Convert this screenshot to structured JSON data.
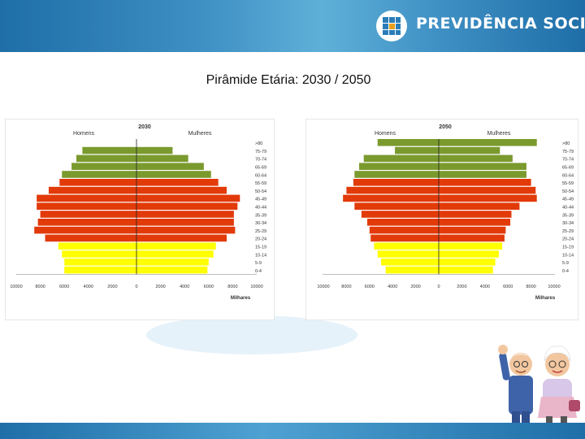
{
  "brand": {
    "name": "PREVIDÊNCIA SOCIAL"
  },
  "page": {
    "title": "Pirâmide Etária: 2030 / 2050"
  },
  "colors": {
    "green": "#7a9a2e",
    "red": "#e23a09",
    "yellow": "#ffff00"
  },
  "chart_data": [
    {
      "type": "bar",
      "title": "2030",
      "left_label": "Homens",
      "right_label": "Mulheres",
      "xlabel": "Milhares",
      "xlim": [
        -10000,
        10000
      ],
      "x_ticks": [
        "10000",
        "8000",
        "6000",
        "4000",
        "2000",
        "0",
        "2000",
        "4000",
        "6000",
        "8000",
        "10000"
      ],
      "categories": [
        ">80",
        "75-79",
        "70-74",
        "65-69",
        "60-64",
        "55-59",
        "50-54",
        "45-49",
        "40-44",
        "35-39",
        "30-34",
        "25-29",
        "20-24",
        "15-19",
        "10-14",
        "5-9",
        "0-4"
      ],
      "category_colors": [
        "green",
        "green",
        "green",
        "green",
        "green",
        "red",
        "red",
        "red",
        "red",
        "red",
        "red",
        "red",
        "red",
        "yellow",
        "yellow",
        "yellow",
        "yellow"
      ],
      "series": [
        {
          "name": "Homens",
          "values": [
            0,
            4500,
            5000,
            5400,
            6200,
            6400,
            7300,
            8300,
            8300,
            8000,
            8200,
            8500,
            7600,
            6500,
            6200,
            6000,
            6000
          ]
        },
        {
          "name": "Mulheres",
          "values": [
            0,
            3000,
            4300,
            5600,
            6200,
            6800,
            7500,
            8600,
            8400,
            8100,
            8100,
            8200,
            7500,
            6600,
            6400,
            6000,
            5900
          ]
        }
      ]
    },
    {
      "type": "bar",
      "title": "2050",
      "left_label": "Homens",
      "right_label": "Mulheres",
      "xlabel": "Milhares",
      "xlim": [
        -10000,
        10000
      ],
      "x_ticks": [
        "10000",
        "8000",
        "6000",
        "4000",
        "2000",
        "0",
        "2000",
        "4000",
        "6000",
        "8000",
        "10000"
      ],
      "categories": [
        ">80",
        "75-79",
        "70-74",
        "65-69",
        "60-64",
        "55-59",
        "50-54",
        "45-49",
        "40-44",
        "35-39",
        "30-34",
        "25-29",
        "20-24",
        "15-19",
        "10-14",
        "5-9",
        "0-4"
      ],
      "category_colors": [
        "green",
        "green",
        "green",
        "green",
        "green",
        "red",
        "red",
        "red",
        "red",
        "red",
        "red",
        "red",
        "red",
        "yellow",
        "yellow",
        "yellow",
        "yellow"
      ],
      "series": [
        {
          "name": "Homens",
          "values": [
            5300,
            3800,
            6500,
            6900,
            7300,
            7400,
            8000,
            8300,
            7300,
            6700,
            6200,
            6000,
            5900,
            5600,
            5300,
            5000,
            4600
          ]
        },
        {
          "name": "Mulheres",
          "values": [
            8500,
            5300,
            6400,
            7600,
            7600,
            8000,
            8400,
            8500,
            7000,
            6300,
            6200,
            5800,
            5700,
            5500,
            5200,
            4900,
            4700
          ]
        }
      ]
    }
  ]
}
